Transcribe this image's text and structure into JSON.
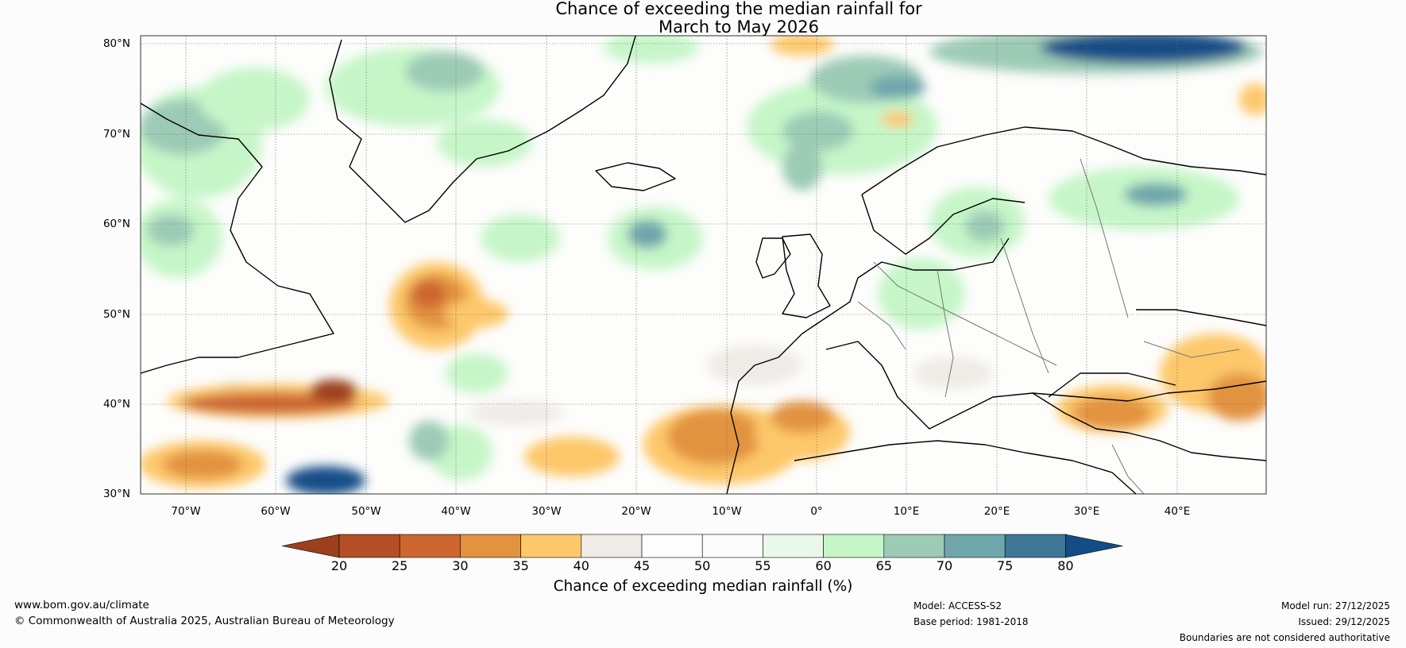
{
  "title": {
    "line1": "Chance of exceeding the median rainfall for",
    "line2": "March to May 2026"
  },
  "map": {
    "lat_labels": [
      "80°N",
      "70°N",
      "60°N",
      "50°N",
      "40°N",
      "30°N"
    ],
    "lon_labels": [
      "70°W",
      "60°W",
      "50°W",
      "40°W",
      "30°W",
      "20°W",
      "10°W",
      "0°",
      "10°E",
      "20°E",
      "30°E",
      "40°E"
    ],
    "extent": {
      "lon": [
        -75,
        50
      ],
      "lat": [
        30,
        81
      ]
    }
  },
  "colorbar": {
    "ticks": [
      "20",
      "25",
      "30",
      "35",
      "40",
      "45",
      "50",
      "55",
      "60",
      "65",
      "70",
      "75",
      "80"
    ],
    "colors": [
      "#9c3f1d",
      "#b34e25",
      "#cd6630",
      "#e2933f",
      "#fdc86a",
      "#efebe6",
      "#fdfdfc",
      "#fbfcfb",
      "#e9f8e8",
      "#c6f6c8",
      "#9ccbb6",
      "#6ea6ac",
      "#3e7797",
      "#124d87"
    ],
    "label": "Chance of exceeding median rainfall (%)"
  },
  "footer": {
    "url": "www.bom.gov.au/climate",
    "copyright": "© Commonwealth of Australia 2025, Australian Bureau of Meteorology",
    "model": "Model: ACCESS-S2",
    "base_period": "Base period: 1981-2018",
    "model_run": "Model run: 27/12/2025",
    "issued": "Issued: 29/12/2025",
    "disclaimer": "Boundaries are not considered authoritative"
  }
}
